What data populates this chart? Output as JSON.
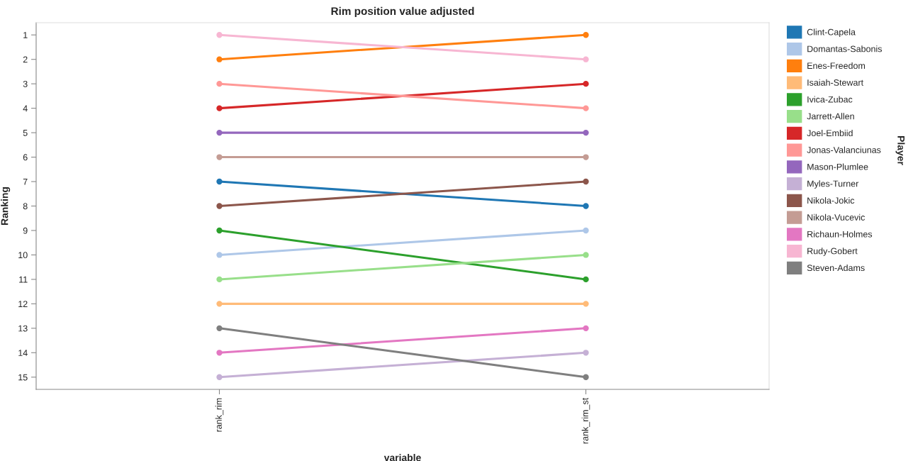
{
  "chart_data": {
    "type": "line",
    "title": "Rim position value adjusted",
    "xlabel": "variable",
    "ylabel": "Ranking",
    "legend_title": "Player",
    "categories": [
      "rank_rim",
      "rank_rim_st"
    ],
    "series": [
      {
        "name": "Clint-Capela",
        "color": "#1f77b4",
        "values": [
          7,
          8
        ]
      },
      {
        "name": "Domantas-Sabonis",
        "color": "#aec7e8",
        "values": [
          10,
          9
        ]
      },
      {
        "name": "Enes-Freedom",
        "color": "#ff7f0e",
        "values": [
          2,
          1
        ]
      },
      {
        "name": "Isaiah-Stewart",
        "color": "#ffbb78",
        "values": [
          12,
          12
        ]
      },
      {
        "name": "Ivica-Zubac",
        "color": "#2ca02c",
        "values": [
          9,
          11
        ]
      },
      {
        "name": "Jarrett-Allen",
        "color": "#98df8a",
        "values": [
          11,
          10
        ]
      },
      {
        "name": "Joel-Embiid",
        "color": "#d62728",
        "values": [
          4,
          3
        ]
      },
      {
        "name": "Jonas-Valanciunas",
        "color": "#ff9896",
        "values": [
          3,
          4
        ]
      },
      {
        "name": "Mason-Plumlee",
        "color": "#9467bd",
        "values": [
          5,
          5
        ]
      },
      {
        "name": "Myles-Turner",
        "color": "#c5b0d5",
        "values": [
          15,
          14
        ]
      },
      {
        "name": "Nikola-Jokic",
        "color": "#8c564b",
        "values": [
          8,
          7
        ]
      },
      {
        "name": "Nikola-Vucevic",
        "color": "#c49c94",
        "values": [
          6,
          6
        ]
      },
      {
        "name": "Richaun-Holmes",
        "color": "#e377c2",
        "values": [
          14,
          13
        ]
      },
      {
        "name": "Rudy-Gobert",
        "color": "#f7b6d2",
        "values": [
          1,
          2
        ]
      },
      {
        "name": "Steven-Adams",
        "color": "#7f7f7f",
        "values": [
          13,
          15
        ]
      }
    ],
    "ylim": [
      15.5,
      0.5
    ],
    "yticks": [
      1,
      2,
      3,
      4,
      5,
      6,
      7,
      8,
      9,
      10,
      11,
      12,
      13,
      14,
      15
    ],
    "marker": "circle",
    "line_style": "solid",
    "grid": false,
    "legend": "right"
  }
}
